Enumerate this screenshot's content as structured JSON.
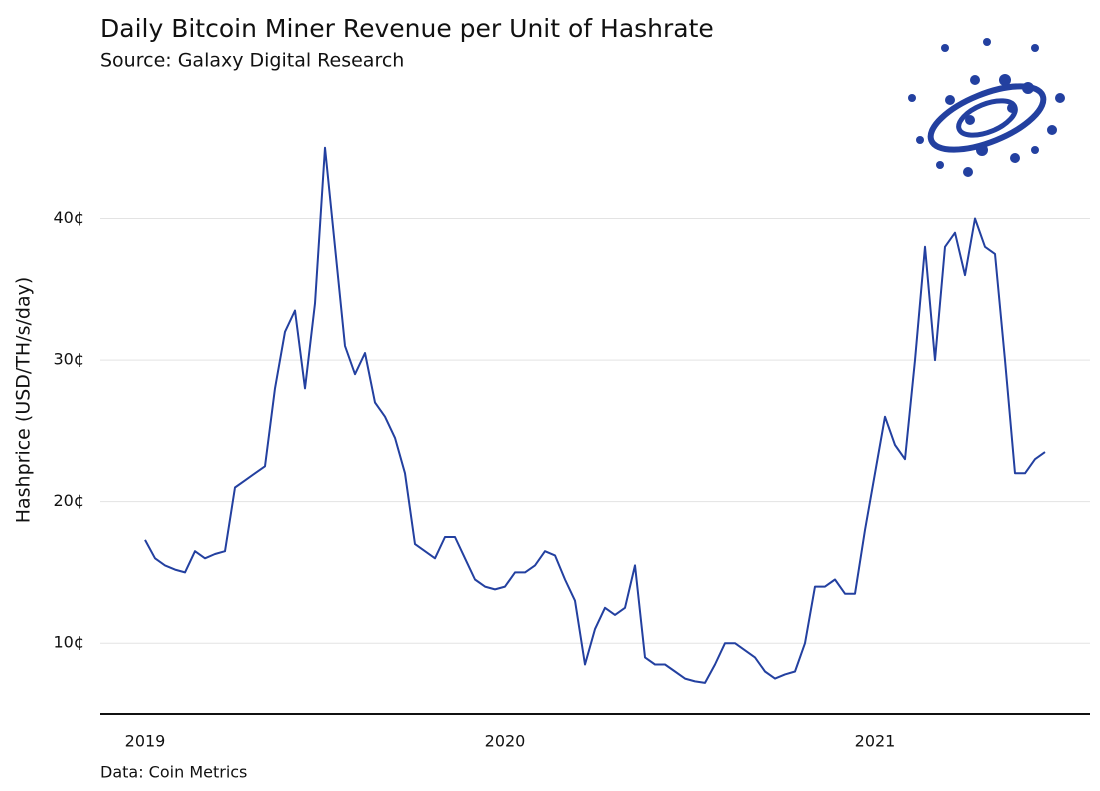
{
  "chart_data": {
    "type": "line",
    "title": "Daily Bitcoin Miner Revenue per Unit of Hashrate",
    "subtitle": "Source: Galaxy Digital Research",
    "y_label": "Hashprice (USD/TH/s/day)",
    "note": "Data: Coin Metrics",
    "color": "#2340a0",
    "grid": true,
    "categories": [
      "2019",
      null,
      null,
      null,
      null,
      null,
      null,
      null,
      null,
      null,
      null,
      null,
      null,
      null,
      null,
      null,
      null,
      null,
      null,
      null,
      null,
      null,
      null,
      null,
      null,
      null,
      null,
      null,
      null,
      null,
      null,
      null,
      null,
      null,
      null,
      null,
      "2020",
      null,
      null,
      null,
      null,
      null,
      null,
      null,
      null,
      null,
      null,
      null,
      null,
      null,
      null,
      null,
      null,
      null,
      null,
      null,
      null,
      null,
      null,
      null,
      null,
      null,
      null,
      null,
      null,
      null,
      null,
      null,
      null,
      null,
      null,
      null,
      null,
      "2021",
      null,
      null,
      null,
      null,
      null,
      null,
      null,
      null,
      null,
      null,
      null,
      null,
      null,
      null,
      null,
      null,
      null
    ],
    "values": [
      17.3,
      16.0,
      15.5,
      15.2,
      15.0,
      16.5,
      16.0,
      16.3,
      16.5,
      21,
      21.5,
      22,
      22.5,
      28,
      32,
      33.5,
      28,
      34,
      45,
      38,
      31,
      29,
      30.5,
      27,
      26,
      24.5,
      22,
      17,
      16.5,
      16,
      17.5,
      17.5,
      16,
      14.5,
      14,
      13.8,
      14,
      15,
      15,
      15.5,
      16.5,
      16.2,
      14.5,
      13,
      8.5,
      11,
      12.5,
      12,
      12.5,
      15.5,
      9,
      8.5,
      8.5,
      8,
      7.5,
      7.3,
      7.2,
      8.5,
      10,
      10,
      9.5,
      9,
      8,
      7.5,
      7.8,
      8,
      10,
      14,
      14,
      14.5,
      13.5,
      13.5,
      18,
      22,
      26,
      24,
      23,
      30,
      38,
      30,
      38,
      39,
      36,
      40,
      38,
      37.5,
      30,
      22,
      22,
      23,
      23.5
    ],
    "ylim": [
      5,
      48.3
    ],
    "yticks": [
      {
        "value": 10,
        "label": "10¢"
      },
      {
        "value": 20,
        "label": "20¢"
      },
      {
        "value": 30,
        "label": "30¢"
      },
      {
        "value": 40,
        "label": "40¢"
      }
    ]
  }
}
